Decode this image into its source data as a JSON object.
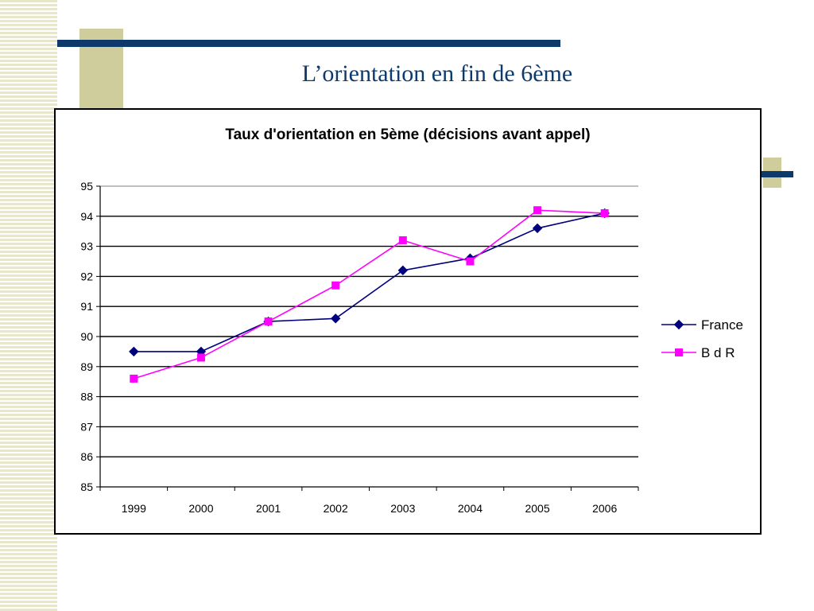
{
  "slide": {
    "title": "L’orientation en fin de 6ème"
  },
  "colors": {
    "france": "#00007f",
    "bdr": "#ff00ff",
    "title": "#0e3a6b",
    "accent": "#cfcd9b"
  },
  "chart_data": {
    "type": "line",
    "title": "Taux d'orientation en 5ème (décisions avant appel)",
    "xlabel": "",
    "ylabel": "",
    "categories": [
      "1999",
      "2000",
      "2001",
      "2002",
      "2003",
      "2004",
      "2005",
      "2006"
    ],
    "ylim": [
      85,
      95
    ],
    "yticks": [
      "85",
      "86",
      "87",
      "88",
      "89",
      "90",
      "91",
      "92",
      "93",
      "94",
      "95"
    ],
    "grid": true,
    "legend": "right",
    "series": [
      {
        "name": "France",
        "marker": "diamond",
        "color": "#00007f",
        "values": [
          89.5,
          89.5,
          90.5,
          90.6,
          92.2,
          92.6,
          93.6,
          94.1
        ]
      },
      {
        "name": "B d R",
        "marker": "square",
        "color": "#ff00ff",
        "values": [
          88.6,
          89.3,
          90.5,
          91.7,
          93.2,
          92.5,
          94.2,
          94.1
        ]
      }
    ]
  }
}
